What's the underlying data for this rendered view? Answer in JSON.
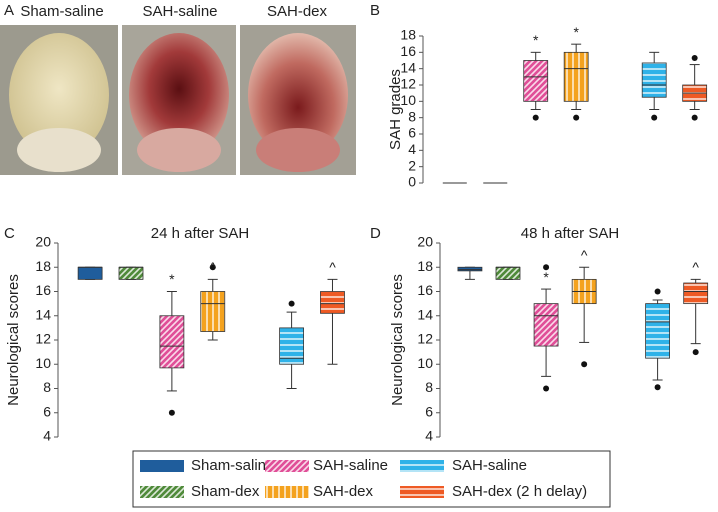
{
  "panel_labels": [
    "A",
    "B",
    "C",
    "D"
  ],
  "photos": {
    "labels": [
      "Sham-saline",
      "SAH-saline",
      "SAH-dex"
    ]
  },
  "legend": {
    "series": [
      {
        "name": "Sham-saline",
        "color": "#1f5d9c",
        "pattern": "solid"
      },
      {
        "name": "Sham-dex",
        "color": "#4f8a3a",
        "pattern": "diagonal"
      },
      {
        "name": "SAH-saline",
        "color": "#e04f98",
        "pattern": "diagonal"
      },
      {
        "name": "SAH-dex",
        "color": "#f4a21e",
        "pattern": "vertical"
      },
      {
        "name": "SAH-saline",
        "color": "#2fb2e8",
        "pattern": "horizontal"
      },
      {
        "name": "SAH-dex (2 h delay)",
        "color": "#ee5a24",
        "pattern": "horizontal"
      }
    ]
  },
  "chart_data": [
    {
      "type": "box",
      "y_label": "SAH grades",
      "ylim": [
        0,
        18
      ],
      "yticks": [
        0,
        2,
        4,
        6,
        8,
        10,
        12,
        14,
        16,
        18
      ],
      "boxes": [
        {
          "low": 0,
          "q1": 0,
          "median": 0,
          "q3": 0,
          "high": 0,
          "outliers": []
        },
        {
          "low": 0,
          "q1": 0,
          "median": 0,
          "q3": 0,
          "high": 0,
          "outliers": []
        },
        {
          "low": 9,
          "q1": 10,
          "median": 13,
          "q3": 15,
          "high": 16,
          "outliers": [
            8
          ],
          "note": "*"
        },
        {
          "low": 9,
          "q1": 10,
          "median": 14,
          "q3": 16,
          "high": 17,
          "outliers": [
            8
          ],
          "note": "*"
        },
        {
          "low": 9,
          "q1": 10.5,
          "median": 12,
          "q3": 14.7,
          "high": 16,
          "outliers": [
            8
          ]
        },
        {
          "low": 9,
          "q1": 10,
          "median": 11,
          "q3": 12,
          "high": 14.5,
          "outliers": [
            8,
            15.3
          ]
        }
      ]
    },
    {
      "type": "box",
      "title": "24 h after SAH",
      "y_label": "Neurological scores",
      "ylim": [
        4,
        20
      ],
      "yticks": [
        4,
        6,
        8,
        10,
        12,
        14,
        16,
        18,
        20
      ],
      "boxes": [
        {
          "low": 17,
          "q1": 17,
          "median": 18,
          "q3": 18,
          "high": 18,
          "outliers": []
        },
        {
          "low": 17,
          "q1": 17,
          "median": 18,
          "q3": 18,
          "high": 18,
          "outliers": []
        },
        {
          "low": 7.8,
          "q1": 9.7,
          "median": 11.5,
          "q3": 14,
          "high": 16,
          "outliers": [
            6
          ],
          "note": "*"
        },
        {
          "low": 12,
          "q1": 12.7,
          "median": 15,
          "q3": 16,
          "high": 17,
          "outliers": [
            18
          ],
          "note": "^"
        },
        {
          "low": 8,
          "q1": 10,
          "median": 10.5,
          "q3": 13,
          "high": 14.3,
          "outliers": [
            15
          ]
        },
        {
          "low": 10,
          "q1": 14.2,
          "median": 15,
          "q3": 16,
          "high": 17,
          "outliers": [],
          "note": "^"
        }
      ]
    },
    {
      "type": "box",
      "title": "48 h after SAH",
      "y_label": "Neurological scores",
      "ylim": [
        4,
        20
      ],
      "yticks": [
        4,
        6,
        8,
        10,
        12,
        14,
        16,
        18,
        20
      ],
      "boxes": [
        {
          "low": 17,
          "q1": 17.7,
          "median": 17.8,
          "q3": 18,
          "high": 18,
          "outliers": []
        },
        {
          "low": 17,
          "q1": 17,
          "median": 18,
          "q3": 18,
          "high": 18,
          "outliers": []
        },
        {
          "low": 9,
          "q1": 11.5,
          "median": 14,
          "q3": 15,
          "high": 16.2,
          "outliers": [
            8,
            18
          ],
          "note": "*"
        },
        {
          "low": 11.8,
          "q1": 15,
          "median": 16,
          "q3": 17,
          "high": 18,
          "outliers": [
            10
          ],
          "note": "^"
        },
        {
          "low": 8.7,
          "q1": 10.5,
          "median": 13.5,
          "q3": 15,
          "high": 15.3,
          "outliers": [
            8.1,
            16
          ]
        },
        {
          "low": 11.7,
          "q1": 15,
          "median": 16,
          "q3": 16.7,
          "high": 17,
          "outliers": [
            11
          ],
          "note": "^"
        }
      ]
    }
  ]
}
